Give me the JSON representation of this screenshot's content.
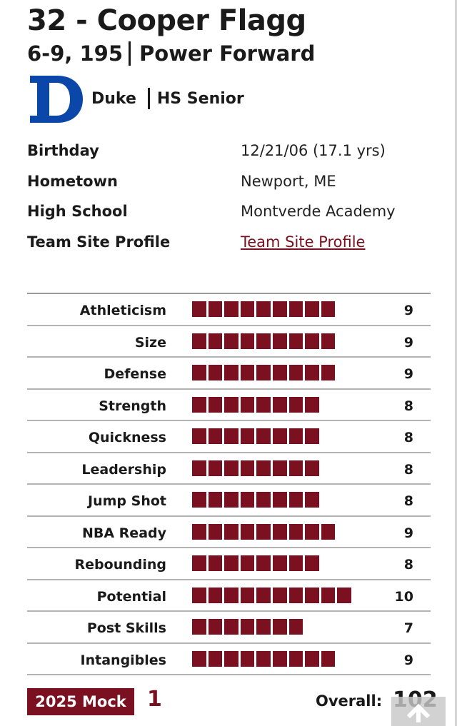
{
  "player": {
    "title": "32 - Cooper Flagg",
    "measurements": "6-9, 195",
    "position": "Power Forward",
    "school": "Duke",
    "class_year": "HS Senior",
    "logo_icon": "duke-d-logo-icon",
    "colors": {
      "accent": "#7a1020",
      "duke_blue": "#0b47a8"
    }
  },
  "info": [
    {
      "label": "Birthday",
      "value": "12/21/06 (17.1 yrs)"
    },
    {
      "label": "Hometown",
      "value": "Newport, ME"
    },
    {
      "label": "High School",
      "value": "Montverde Academy"
    },
    {
      "label": "Team Site Profile",
      "value": "Team Site Profile",
      "link": true
    }
  ],
  "ratings": [
    {
      "label": "Athleticism",
      "value": 9
    },
    {
      "label": "Size",
      "value": 9
    },
    {
      "label": "Defense",
      "value": 9
    },
    {
      "label": "Strength",
      "value": 8
    },
    {
      "label": "Quickness",
      "value": 8
    },
    {
      "label": "Leadership",
      "value": 8
    },
    {
      "label": "Jump Shot",
      "value": 8
    },
    {
      "label": "NBA Ready",
      "value": 9
    },
    {
      "label": "Rebounding",
      "value": 8
    },
    {
      "label": "Potential",
      "value": 10
    },
    {
      "label": "Post Skills",
      "value": 7
    },
    {
      "label": "Intangibles",
      "value": 9
    }
  ],
  "footer": {
    "mock_label": "2025 Mock",
    "mock_value": "1",
    "overall_label": "Overall:",
    "overall_value": "102",
    "scroll_icon": "arrow-up-icon"
  }
}
